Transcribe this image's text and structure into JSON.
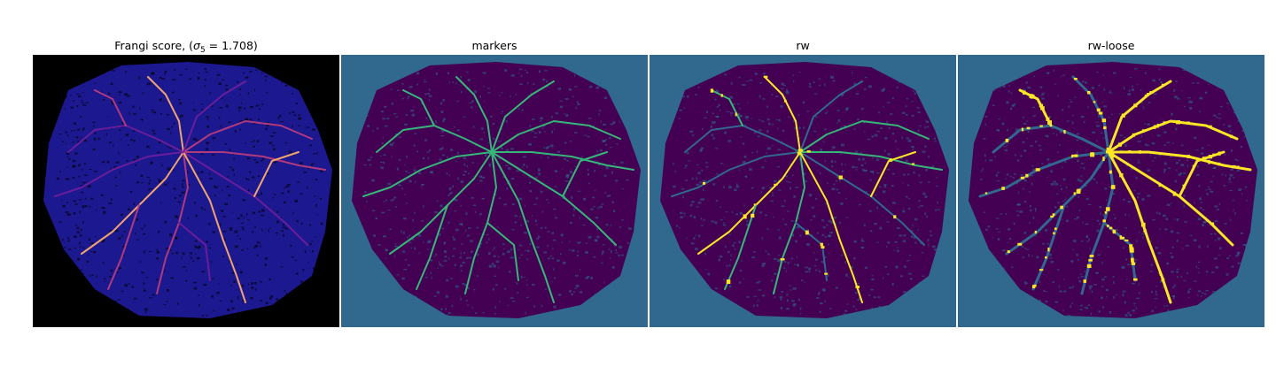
{
  "figure": {
    "panels": [
      {
        "id": "frangi",
        "title_prefix": "Frangi score, (",
        "sigma_symbol": "σ",
        "sigma_subscript": "5",
        "title_suffix": " = 1.708)",
        "background_color": "#000000",
        "region_color": "#1c1890",
        "vessel_colors": [
          "#6a1d9a",
          "#b03a7e",
          "#f0a36e"
        ]
      },
      {
        "id": "markers",
        "title": "markers",
        "background_color": "#30688e",
        "region_color": "#440154",
        "vessel_colors": [
          "#35b779"
        ]
      },
      {
        "id": "rw",
        "title": "rw",
        "background_color": "#30688e",
        "region_color": "#440154",
        "vessel_colors": [
          "#31688e",
          "#35b779",
          "#fde725"
        ]
      },
      {
        "id": "rw-loose",
        "title": "rw-loose",
        "background_color": "#30688e",
        "region_color": "#440154",
        "vessel_colors": [
          "#31688e",
          "#fde725"
        ]
      }
    ]
  }
}
